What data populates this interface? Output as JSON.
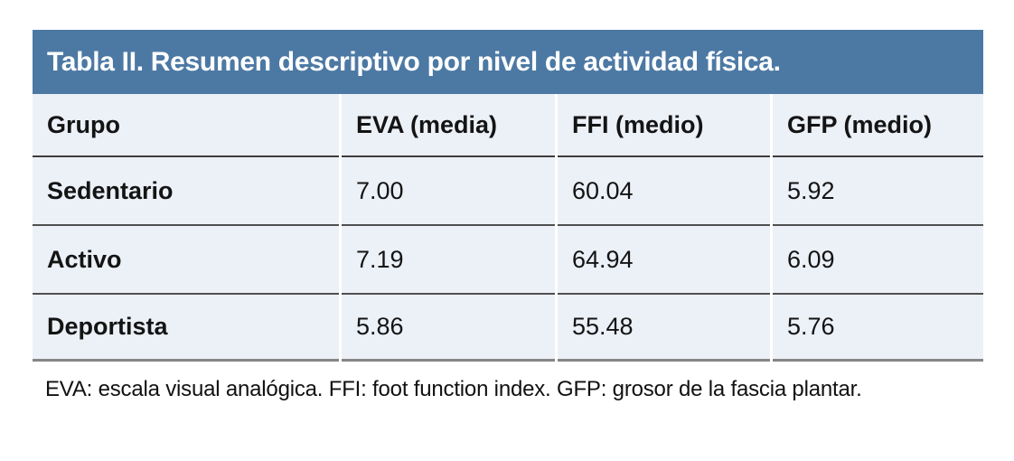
{
  "table": {
    "title": "Tabla II. Resumen descriptivo por nivel de actividad física.",
    "title_bg_color": "#4C79A4",
    "title_text_color": "#FFFFFF",
    "row_bg_color": "#ECF0F7",
    "columns": [
      "Grupo",
      "EVA (media)",
      "FFI (medio)",
      "GFP (medio)"
    ],
    "rows": [
      {
        "cells": [
          "Sedentario",
          "7.00",
          "60.04",
          "5.92"
        ]
      },
      {
        "cells": [
          "Activo",
          "7.19",
          "64.94",
          "6.09"
        ]
      },
      {
        "cells": [
          "Deportista",
          "5.86",
          "55.48",
          "5.76"
        ]
      }
    ],
    "footnote": "EVA: escala visual analógica. FFI: foot function index. GFP: grosor de la fascia plantar."
  },
  "chart_data": {
    "type": "table",
    "title": "Tabla II. Resumen descriptivo por nivel de actividad física.",
    "columns": [
      "Grupo",
      "EVA (media)",
      "FFI (medio)",
      "GFP (medio)"
    ],
    "rows": [
      [
        "Sedentario",
        7.0,
        60.04,
        5.92
      ],
      [
        "Activo",
        7.19,
        64.94,
        6.09
      ],
      [
        "Deportista",
        5.86,
        55.48,
        5.76
      ]
    ],
    "footnote": "EVA: escala visual analógica. FFI: foot function index. GFP: grosor de la fascia plantar."
  }
}
